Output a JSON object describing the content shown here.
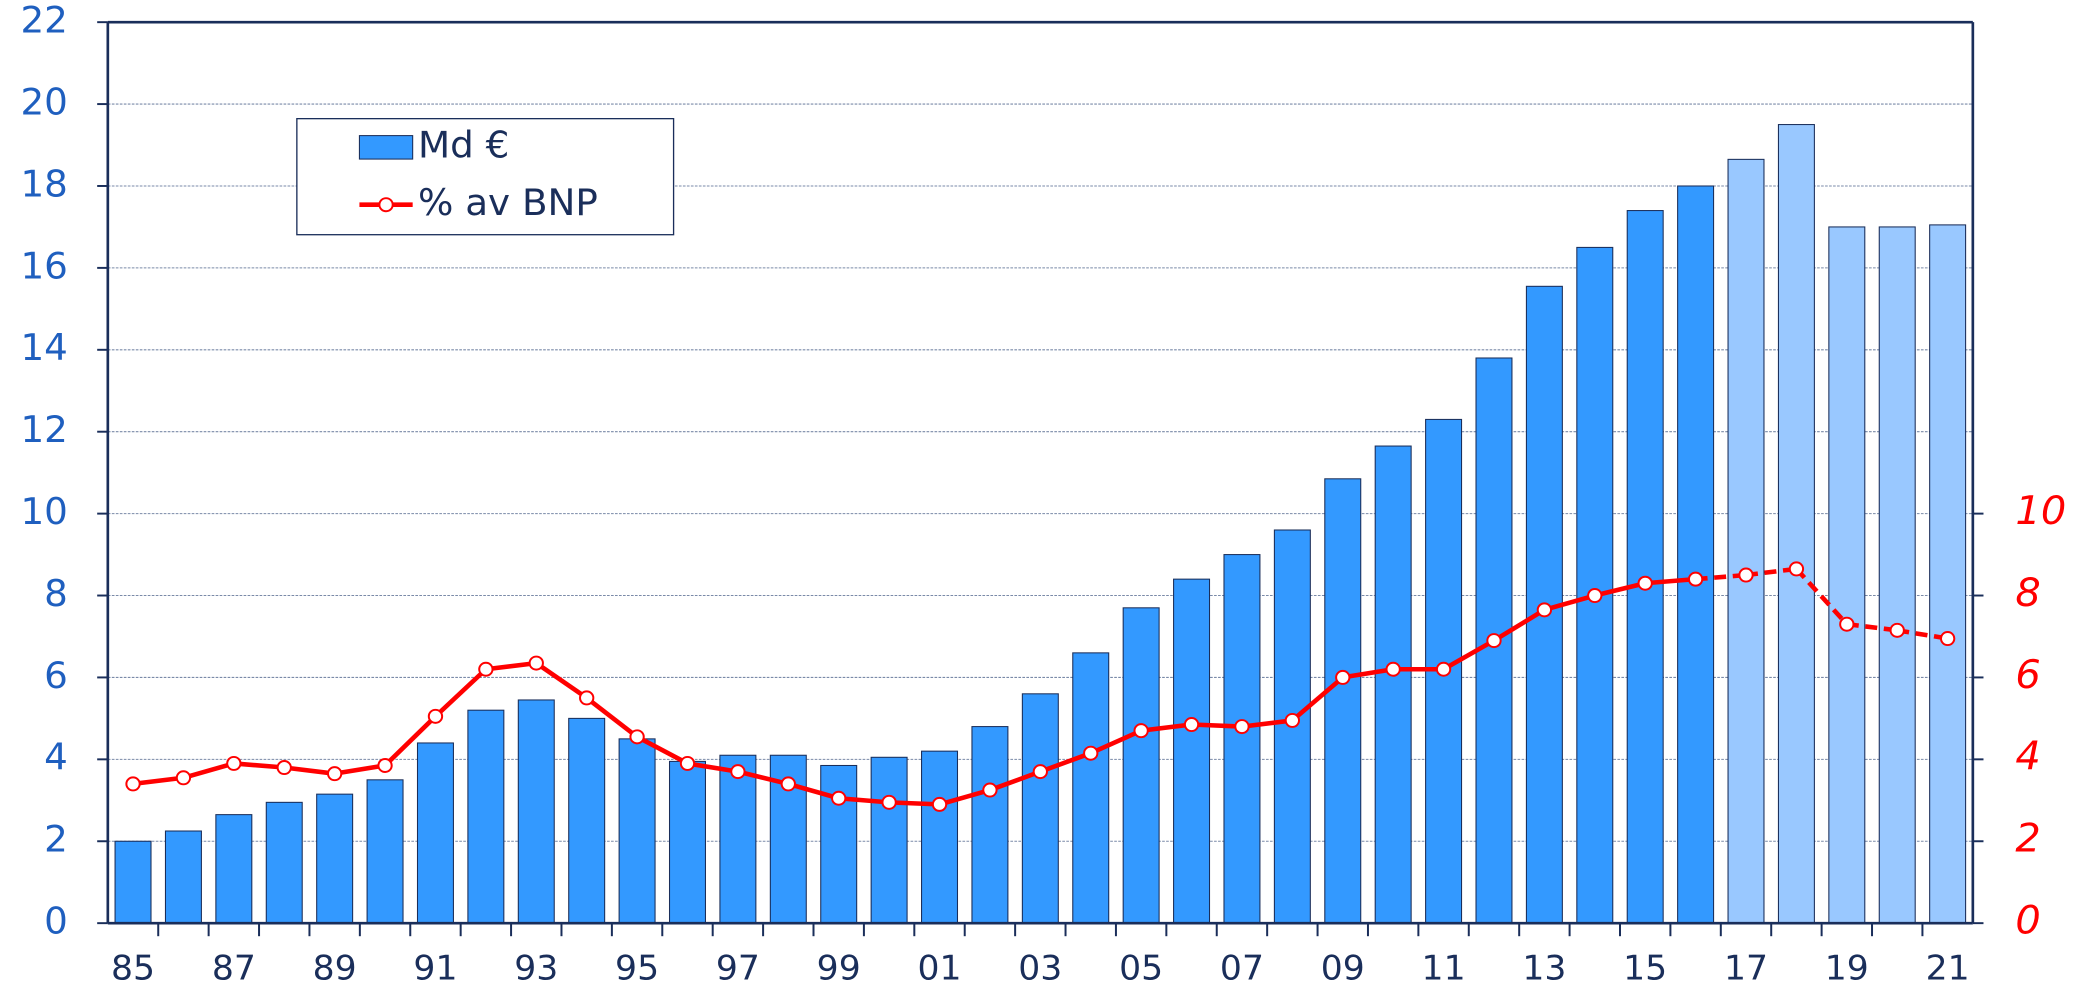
{
  "chart_data": {
    "type": "bar",
    "categories": [
      "85",
      null,
      "87",
      null,
      "89",
      null,
      "91",
      null,
      "93",
      null,
      "95",
      null,
      "97",
      null,
      "99",
      null,
      "01",
      null,
      "03",
      null,
      "05",
      null,
      "07",
      null,
      "09",
      null,
      "11",
      null,
      "13",
      null,
      "15",
      null,
      "17",
      null,
      "19",
      null,
      "21"
    ],
    "series": [
      {
        "name": "Md €",
        "type": "bar",
        "color": "#3399ff",
        "colors": [
          "#3399ff",
          "#3399ff",
          "#3399ff",
          "#3399ff",
          "#3399ff",
          "#3399ff",
          "#3399ff",
          "#3399ff",
          "#3399ff",
          "#3399ff",
          "#3399ff",
          "#3399ff",
          "#3399ff",
          "#3399ff",
          "#3399ff",
          "#3399ff",
          "#3399ff",
          "#3399ff",
          "#3399ff",
          "#3399ff",
          "#3399ff",
          "#3399ff",
          "#3399ff",
          "#3399ff",
          "#3399ff",
          "#3399ff",
          "#3399ff",
          "#3399ff",
          "#3399ff",
          "#3399ff",
          "#3399ff",
          "#3399ff",
          "#99c8ff",
          "#99c8ff",
          "#99c8ff",
          "#99c8ff",
          "#99c8ff"
        ],
        "values": [
          2.0,
          2.25,
          2.65,
          2.95,
          3.15,
          3.5,
          4.4,
          5.2,
          5.45,
          5.0,
          4.5,
          3.95,
          4.1,
          4.1,
          3.85,
          4.05,
          4.2,
          4.8,
          5.6,
          6.6,
          7.7,
          8.4,
          9.0,
          9.6,
          10.85,
          11.65,
          12.3,
          13.8,
          15.55,
          16.5,
          17.4,
          18.0,
          18.65,
          19.5,
          17.0,
          17.0,
          17.05
        ]
      },
      {
        "name": "% av BNP",
        "type": "line",
        "axis": "y2",
        "color": "#ff0000",
        "styles": [
          "solid",
          "solid",
          "solid",
          "solid",
          "solid",
          "solid",
          "solid",
          "solid",
          "solid",
          "solid",
          "solid",
          "solid",
          "solid",
          "solid",
          "solid",
          "solid",
          "solid",
          "solid",
          "solid",
          "solid",
          "solid",
          "solid",
          "solid",
          "solid",
          "solid",
          "solid",
          "solid",
          "solid",
          "solid",
          "solid",
          "solid",
          "solid",
          "dashed",
          "dashed",
          "dashed",
          "dashed",
          "dashed"
        ],
        "values": [
          3.4,
          3.55,
          3.9,
          3.8,
          3.65,
          3.85,
          5.05,
          6.2,
          6.35,
          5.5,
          4.55,
          3.9,
          3.7,
          3.4,
          3.05,
          2.95,
          2.9,
          3.25,
          3.7,
          4.15,
          4.7,
          4.85,
          4.8,
          4.95,
          6.0,
          6.2,
          6.2,
          6.9,
          7.65,
          8.0,
          8.3,
          8.4,
          8.5,
          8.65,
          7.3,
          7.15,
          6.95
        ]
      }
    ],
    "ylim": [
      0,
      22
    ],
    "yticks": [
      0,
      2,
      4,
      6,
      8,
      10,
      12,
      14,
      16,
      18,
      20,
      22
    ],
    "y2lim": [
      0,
      22
    ],
    "y2ticks": [
      0,
      2,
      4,
      6,
      8,
      10
    ],
    "grid": true,
    "legend": "upper left"
  }
}
